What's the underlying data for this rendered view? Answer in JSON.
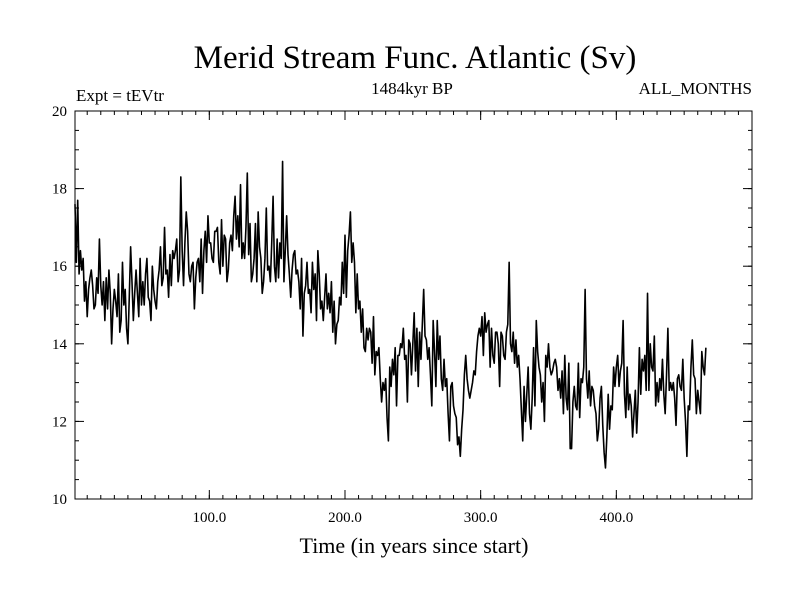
{
  "chart_data": {
    "type": "line",
    "title": "Merid Stream Func. Atlantic (Sv)",
    "subtitle_left": "Expt = tEVtr",
    "subtitle_center": "1484kyr BP",
    "subtitle_right": "ALL_MONTHS",
    "xlabel": "Time (in years since start)",
    "ylabel": "",
    "xlim": [
      1,
      500
    ],
    "ylim": [
      10,
      20
    ],
    "xticks": [
      100,
      200,
      300,
      400
    ],
    "xtick_labels": [
      "100.0",
      "200.0",
      "300.0",
      "400.0"
    ],
    "yticks": [
      10,
      12,
      14,
      16,
      18,
      20
    ],
    "ytick_labels": [
      "10",
      "12",
      "14",
      "16",
      "18",
      "20"
    ],
    "x_minor_step": 10,
    "y_minor_step": 0.5,
    "grid": false,
    "series": [
      {
        "name": "Merid Stream Func. Atlantic",
        "x_start": 1,
        "x_step": 1,
        "values": [
          17.6,
          16.1,
          17.7,
          15.8,
          16.4,
          15.9,
          16.2,
          15.1,
          15.6,
          14.7,
          15.4,
          15.7,
          15.9,
          15.5,
          14.9,
          15.0,
          15.7,
          15.3,
          16.7,
          15.5,
          15.0,
          15.6,
          14.6,
          15.7,
          14.9,
          15.9,
          15.3,
          14.0,
          14.9,
          15.4,
          15.1,
          14.7,
          15.8,
          14.3,
          14.6,
          16.1,
          15.0,
          15.4,
          14.4,
          14.0,
          15.2,
          16.5,
          15.6,
          14.6,
          15.3,
          15.9,
          15.3,
          14.7,
          16.2,
          15.0,
          15.6,
          15.0,
          15.8,
          16.2,
          15.2,
          15.1,
          14.6,
          16.0,
          15.4,
          15.1,
          14.9,
          15.6,
          15.9,
          16.5,
          15.5,
          15.7,
          17.0,
          15.8,
          15.9,
          15.2,
          16.3,
          15.5,
          16.4,
          16.2,
          16.4,
          16.7,
          15.6,
          15.9,
          18.3,
          16.4,
          15.5,
          16.6,
          17.4,
          16.9,
          15.8,
          15.6,
          16.0,
          16.1,
          14.9,
          15.7,
          16.1,
          16.2,
          15.6,
          16.7,
          15.3,
          16.4,
          16.9,
          16.1,
          17.3,
          16.6,
          16.6,
          16.2,
          16.1,
          16.9,
          16.9,
          17.0,
          16.1,
          15.8,
          17.2,
          16.0,
          16.8,
          16.7,
          15.6,
          15.9,
          16.6,
          16.8,
          16.4,
          17.3,
          17.8,
          16.7,
          17.3,
          16.5,
          18.1,
          16.2,
          16.6,
          16.2,
          17.0,
          18.4,
          16.3,
          17.1,
          15.6,
          15.8,
          16.2,
          17.1,
          15.6,
          17.4,
          16.5,
          16.2,
          15.3,
          15.6,
          16.2,
          17.5,
          15.9,
          16.0,
          15.6,
          16.6,
          17.8,
          16.0,
          15.6,
          16.7,
          15.7,
          16.6,
          16.2,
          18.7,
          15.6,
          16.4,
          17.3,
          16.3,
          15.8,
          15.2,
          15.9,
          16.3,
          16.4,
          15.8,
          15.9,
          15.6,
          14.9,
          16.2,
          14.2,
          15.3,
          15.5,
          16.1,
          15.3,
          15.4,
          14.8,
          16.1,
          15.4,
          15.8,
          14.6,
          16.4,
          15.8,
          14.9,
          15.1,
          14.6,
          15.2,
          15.8,
          14.9,
          15.3,
          14.8,
          15.6,
          14.3,
          15.1,
          14.0,
          14.5,
          14.6,
          15.2,
          15.0,
          16.1,
          15.3,
          16.8,
          15.2,
          16.4,
          16.8,
          17.4,
          16.1,
          16.6,
          16.1,
          14.8,
          15.8,
          14.9,
          15.1,
          14.3,
          14.9,
          13.9,
          13.8,
          14.4,
          14.1,
          14.4,
          14.3,
          13.5,
          14.7,
          13.2,
          13.8,
          13.7,
          13.9,
          13.1,
          12.5,
          13.0,
          12.8,
          13.1,
          12.1,
          11.5,
          13.4,
          12.9,
          13.6,
          13.2,
          13.9,
          12.4,
          13.7,
          13.7,
          14.0,
          13.9,
          14.4,
          13.6,
          13.7,
          12.5,
          14.1,
          14.0,
          13.2,
          14.0,
          14.8,
          13.3,
          14.4,
          12.9,
          14.3,
          13.6,
          14.5,
          15.4,
          14.2,
          14.1,
          13.6,
          13.9,
          13.2,
          12.4,
          14.6,
          13.8,
          12.9,
          14.6,
          13.6,
          14.2,
          13.1,
          12.8,
          13.6,
          12.9,
          13.1,
          12.2,
          11.5,
          12.9,
          13.0,
          12.4,
          12.2,
          12.1,
          11.4,
          11.6,
          11.1,
          11.8,
          12.3,
          13.2,
          13.7,
          13.1,
          12.8,
          12.6,
          12.8,
          13.0,
          13.3,
          13.2,
          13.8,
          14.2,
          14.4,
          14.2,
          14.7,
          13.7,
          14.8,
          14.3,
          14.5,
          14.6,
          13.4,
          14.4,
          13.7,
          13.5,
          14.3,
          14.3,
          14.0,
          12.9,
          14.3,
          14.2,
          13.7,
          13.6,
          14.3,
          14.5,
          16.1,
          14.0,
          13.8,
          14.3,
          13.5,
          14.1,
          13.4,
          13.7,
          13.1,
          12.3,
          11.5,
          12.9,
          12.0,
          12.7,
          13.4,
          12.2,
          11.8,
          12.6,
          13.9,
          12.4,
          14.6,
          13.8,
          13.4,
          13.2,
          12.5,
          13.0,
          12.0,
          13.7,
          13.4,
          14.0,
          13.4,
          13.2,
          13.3,
          13.5,
          13.6,
          13.4,
          12.8,
          13.1,
          12.6,
          13.3,
          12.2,
          13.7,
          12.6,
          12.3,
          13.5,
          11.3,
          11.3,
          12.5,
          12.9,
          12.4,
          12.3,
          13.5,
          12.1,
          13.1,
          13.0,
          13.4,
          15.4,
          13.1,
          12.6,
          13.3,
          12.4,
          12.9,
          12.8,
          12.4,
          12.2,
          11.5,
          11.8,
          12.6,
          12.9,
          11.9,
          11.2,
          10.8,
          11.6,
          12.7,
          11.8,
          12.4,
          12.3,
          13.4,
          12.9,
          13.4,
          13.7,
          12.9,
          13.3,
          13.5,
          14.6,
          12.7,
          12.1,
          13.4,
          12.3,
          12.7,
          12.4,
          11.6,
          12.2,
          12.8,
          11.7,
          12.5,
          13.9,
          12.7,
          13.6,
          13.3,
          13.7,
          12.8,
          15.3,
          12.8,
          14.0,
          13.4,
          13.3,
          14.2,
          12.4,
          13.0,
          12.5,
          13.1,
          12.8,
          13.6,
          12.7,
          12.2,
          13.2,
          14.4,
          12.8,
          13.0,
          12.8,
          13.0,
          12.6,
          11.9,
          13.1,
          13.2,
          12.9,
          12.8,
          13.6,
          12.6,
          12.0,
          11.1,
          12.4,
          12.3,
          13.4,
          14.1,
          13.2,
          13.1,
          12.2,
          12.8,
          12.5,
          12.2,
          13.8,
          13.4,
          13.2,
          13.9
        ]
      }
    ]
  }
}
